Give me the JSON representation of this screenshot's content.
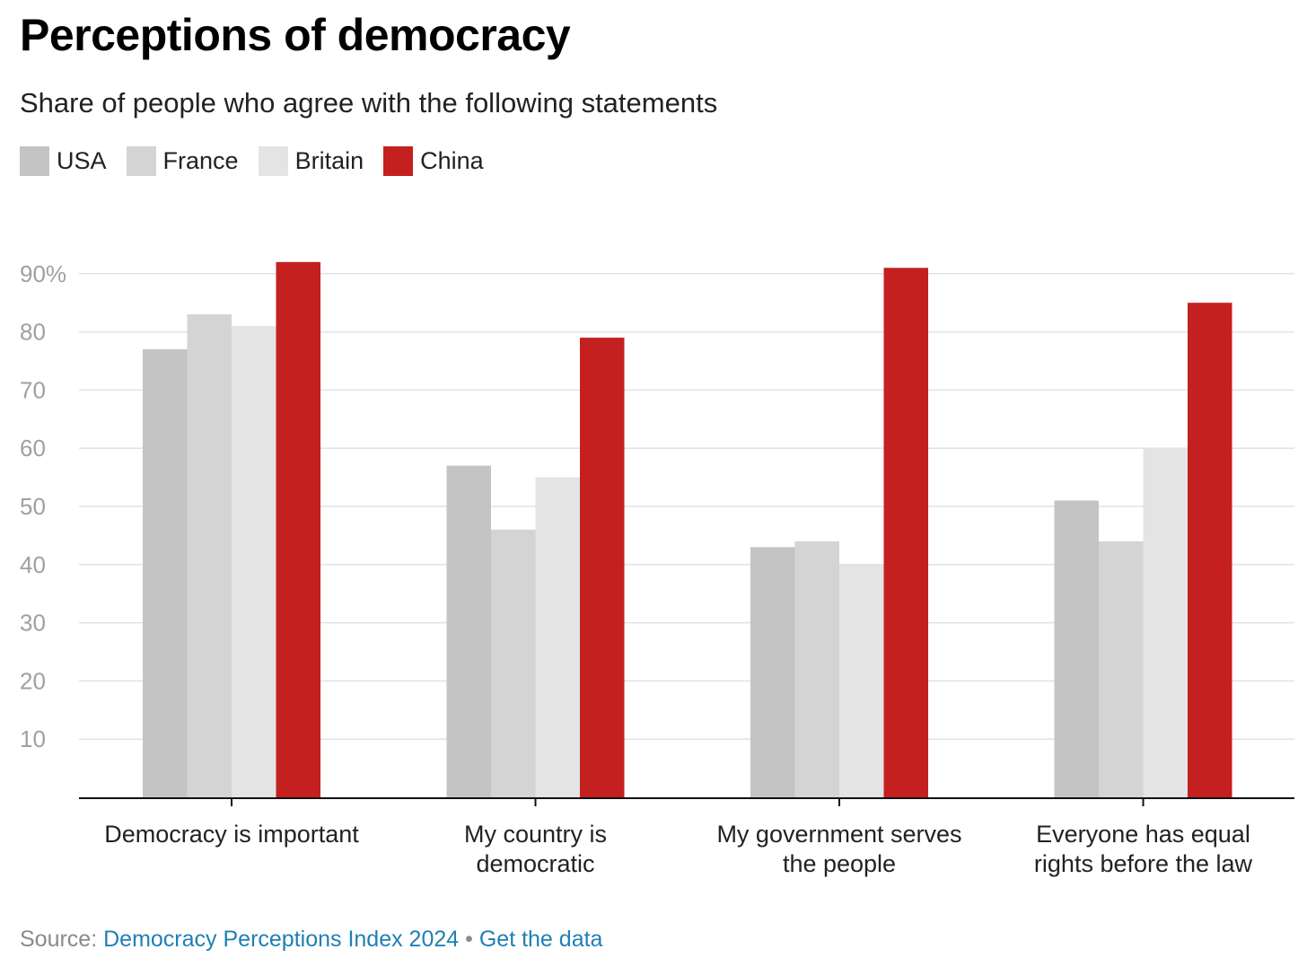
{
  "header": {
    "title": "Perceptions of democracy",
    "subtitle": "Share of people who agree with the following statements"
  },
  "legend": [
    {
      "label": "USA",
      "color": "#c4c4c4"
    },
    {
      "label": "France",
      "color": "#d4d4d4"
    },
    {
      "label": "Britain",
      "color": "#e4e4e4"
    },
    {
      "label": "China",
      "color": "#c42020"
    }
  ],
  "footer": {
    "source_prefix": "Source:",
    "source_link": "Democracy Perceptions Index 2024",
    "separator": "•",
    "data_link": "Get the data"
  },
  "chart_data": {
    "type": "bar",
    "title": "Perceptions of democracy",
    "subtitle": "Share of people who agree with the following statements",
    "categories": [
      [
        "Democracy is important"
      ],
      [
        "My country is",
        "democratic"
      ],
      [
        "My government serves",
        "the people"
      ],
      [
        "Everyone has equal",
        "rights before the law"
      ]
    ],
    "series": [
      {
        "name": "USA",
        "color": "#c4c4c4",
        "values": [
          77,
          57,
          43,
          51
        ]
      },
      {
        "name": "France",
        "color": "#d4d4d4",
        "values": [
          83,
          46,
          44,
          44
        ]
      },
      {
        "name": "Britain",
        "color": "#e4e4e4",
        "values": [
          81,
          55,
          40,
          60
        ]
      },
      {
        "name": "China",
        "color": "#c42020",
        "values": [
          92,
          79,
          91,
          85
        ]
      }
    ],
    "yticks": [
      {
        "value": 90,
        "label": "90%"
      },
      {
        "value": 80,
        "label": "80"
      },
      {
        "value": 70,
        "label": "70"
      },
      {
        "value": 60,
        "label": "60"
      },
      {
        "value": 50,
        "label": "50"
      },
      {
        "value": 40,
        "label": "40"
      },
      {
        "value": 30,
        "label": "30"
      },
      {
        "value": 20,
        "label": "20"
      },
      {
        "value": 10,
        "label": "10"
      }
    ],
    "ylim": [
      0,
      90
    ],
    "grid": true,
    "legend_position": "top-left"
  }
}
